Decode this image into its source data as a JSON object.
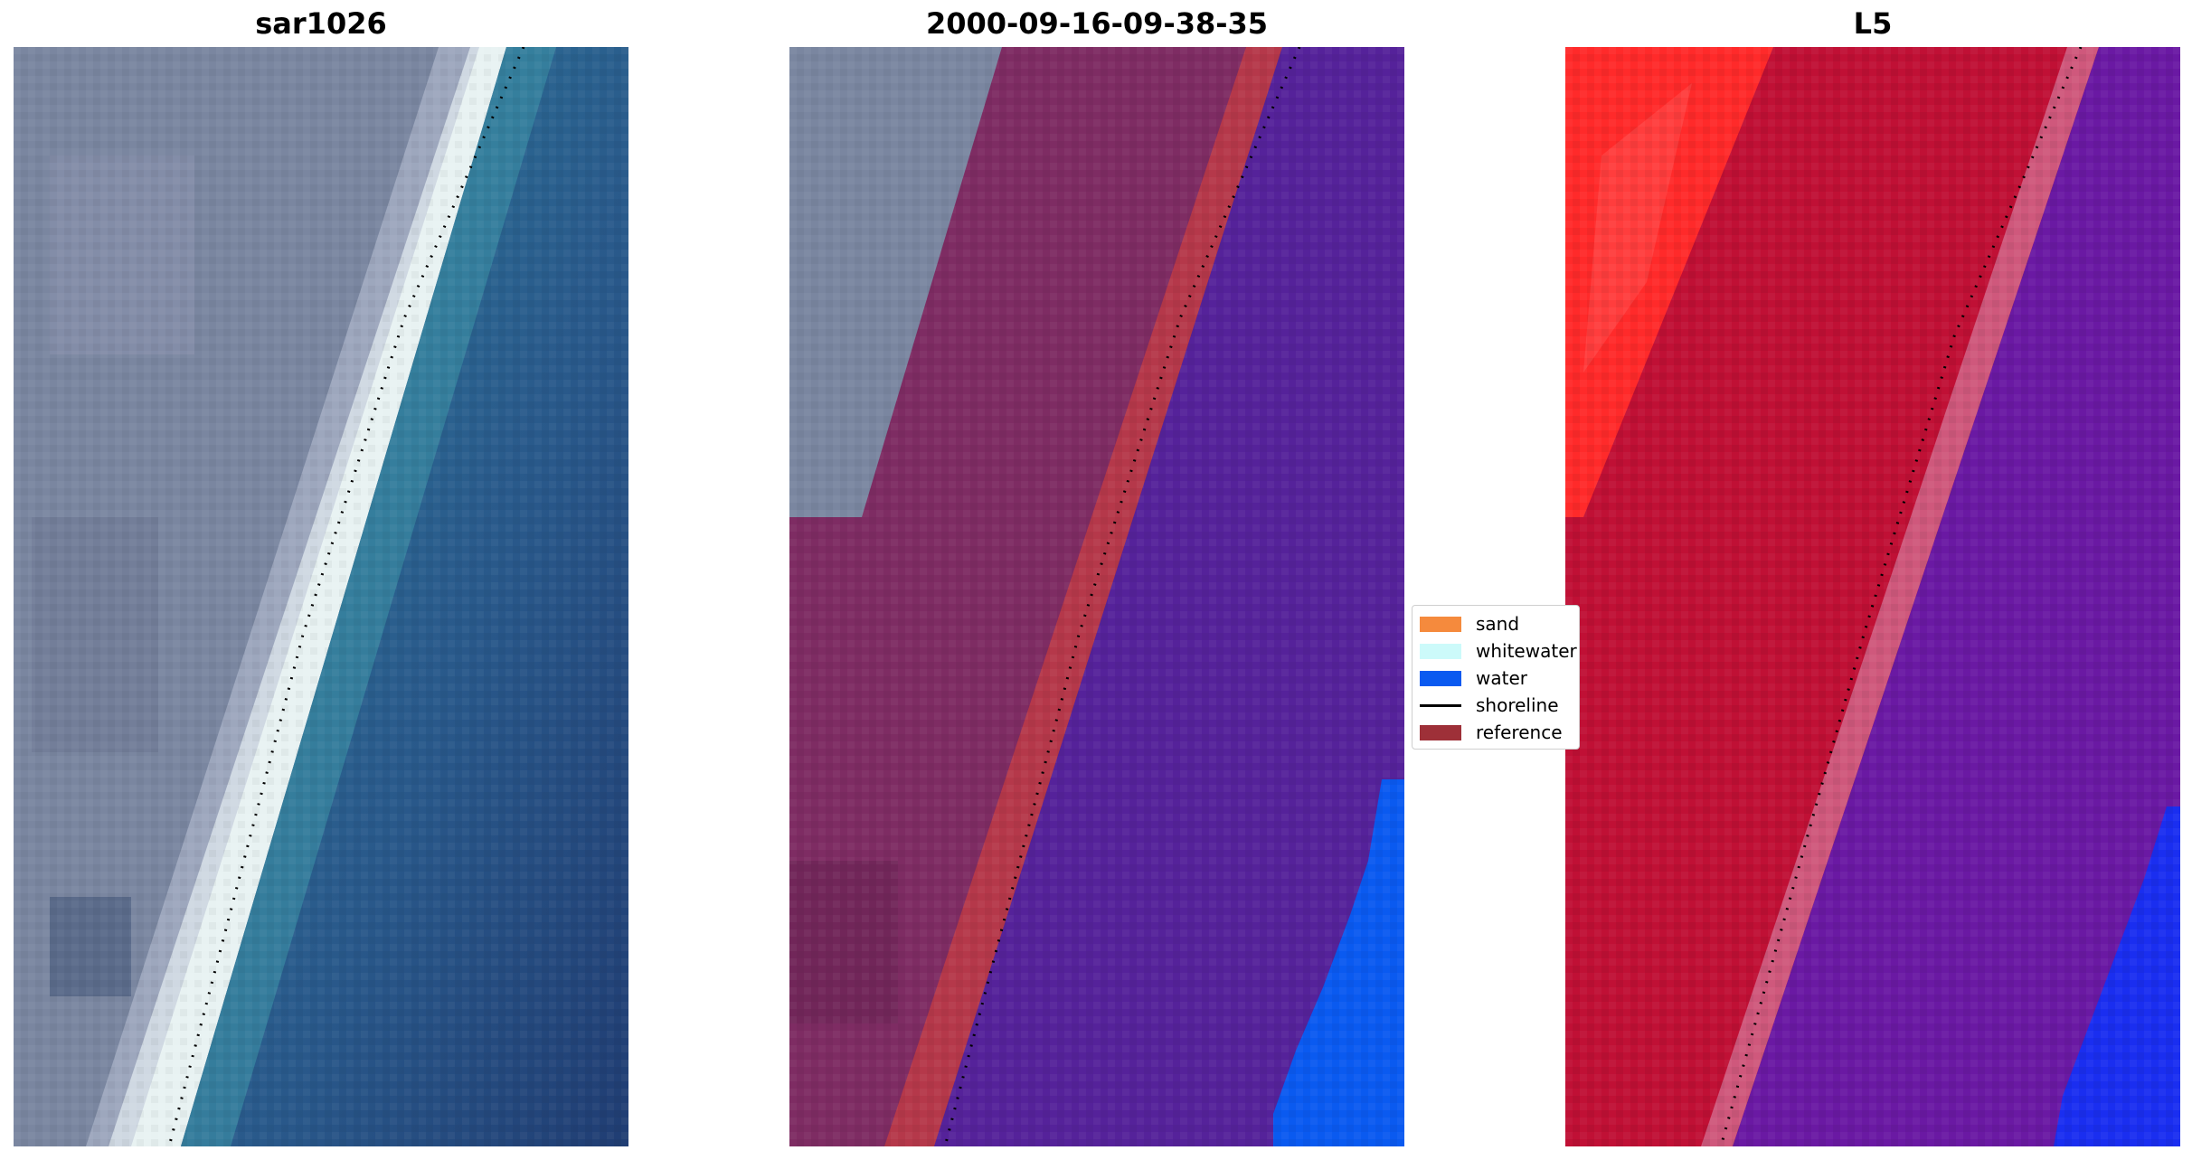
{
  "panels": [
    {
      "title": "sar1026"
    },
    {
      "title": "2000-09-16-09-38-35"
    },
    {
      "title": "L5"
    }
  ],
  "legend": {
    "items": [
      {
        "label": "sand",
        "color": "#f58a3d",
        "kind": "patch"
      },
      {
        "label": "whitewater",
        "color": "#ccfafa",
        "kind": "patch"
      },
      {
        "label": "water",
        "color": "#0a5af0",
        "kind": "patch"
      },
      {
        "label": "shoreline",
        "color": "#000000",
        "kind": "line"
      },
      {
        "label": "reference",
        "color": "#9e3038",
        "kind": "patch"
      }
    ]
  },
  "colors": {
    "land_grey": "#7a86a0",
    "beach_white": "#e8f2f2",
    "sea_teal": "#2f7d9c",
    "sea_deep": "#23467a",
    "classified_land": "#7e2c63",
    "reference_band": "#b5384a",
    "classified_water": "#55229a",
    "water_blue": "#0a5af0",
    "l5_red_bright": "#ff2a2a",
    "l5_crimson": "#c01035",
    "l5_purple": "#6a19a3",
    "l5_blue": "#1a2ef0"
  }
}
